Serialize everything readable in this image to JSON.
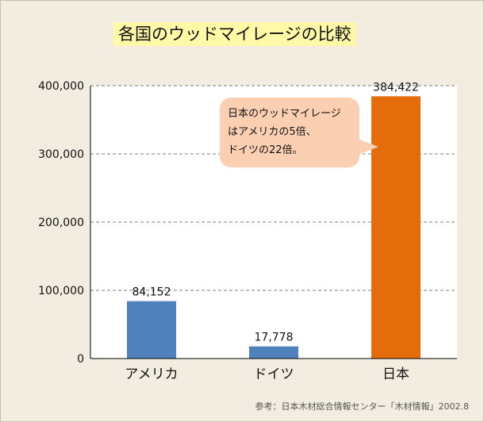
{
  "chart_data": {
    "type": "bar",
    "title": "各国のウッドマイレージの比較",
    "categories": [
      "アメリカ",
      "ドイツ",
      "日本"
    ],
    "values": [
      84152,
      17778,
      384422
    ],
    "value_labels": [
      "84,152",
      "17,778",
      "384,422"
    ],
    "bar_colors": [
      "#4f81bd",
      "#4f81bd",
      "#e46c0a"
    ],
    "yticks": [
      0,
      100000,
      200000,
      300000,
      400000
    ],
    "ytick_labels": [
      "0",
      "100,000",
      "200,000",
      "300,000",
      "400,000"
    ],
    "ylim": [
      0,
      400000
    ],
    "xlabel": "",
    "ylabel": "",
    "grid": true
  },
  "annotation": {
    "lines": [
      "日本のウッドマイレージ",
      "はアメリカの5倍、",
      "ドイツの22倍。"
    ]
  },
  "source": "参考：日本木材総合情報センター「木材情報」2002.8"
}
